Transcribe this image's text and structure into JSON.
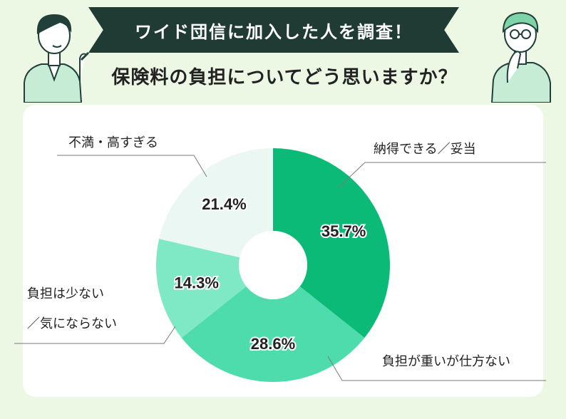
{
  "header": {
    "banner_title": "ワイド団信に加入した人を調査！",
    "question": "保険料の負担についてどう思いますか？"
  },
  "chart_data": {
    "type": "pie",
    "donut": true,
    "categories": [
      "納得できる／妥当",
      "負担が重いが仕方ない",
      "負担は少ない／気にならない",
      "不満・高すぎる"
    ],
    "values": [
      35.7,
      28.6,
      14.3,
      21.4
    ],
    "value_labels": [
      "35.7%",
      "28.6%",
      "14.3%",
      "21.4%"
    ],
    "colors": [
      "#0cba78",
      "#4fdcac",
      "#7fe8c4",
      "#eaf7f2"
    ],
    "label_lines": [
      [
        "納得できる／妥当"
      ],
      [
        "負担が重いが仕方ない"
      ],
      [
        "負担は少ない",
        "／気にならない"
      ],
      [
        "不満・高すぎる"
      ]
    ]
  },
  "illustrations": {
    "left": "person-pointing-icon",
    "right": "person-thinking-icon"
  }
}
